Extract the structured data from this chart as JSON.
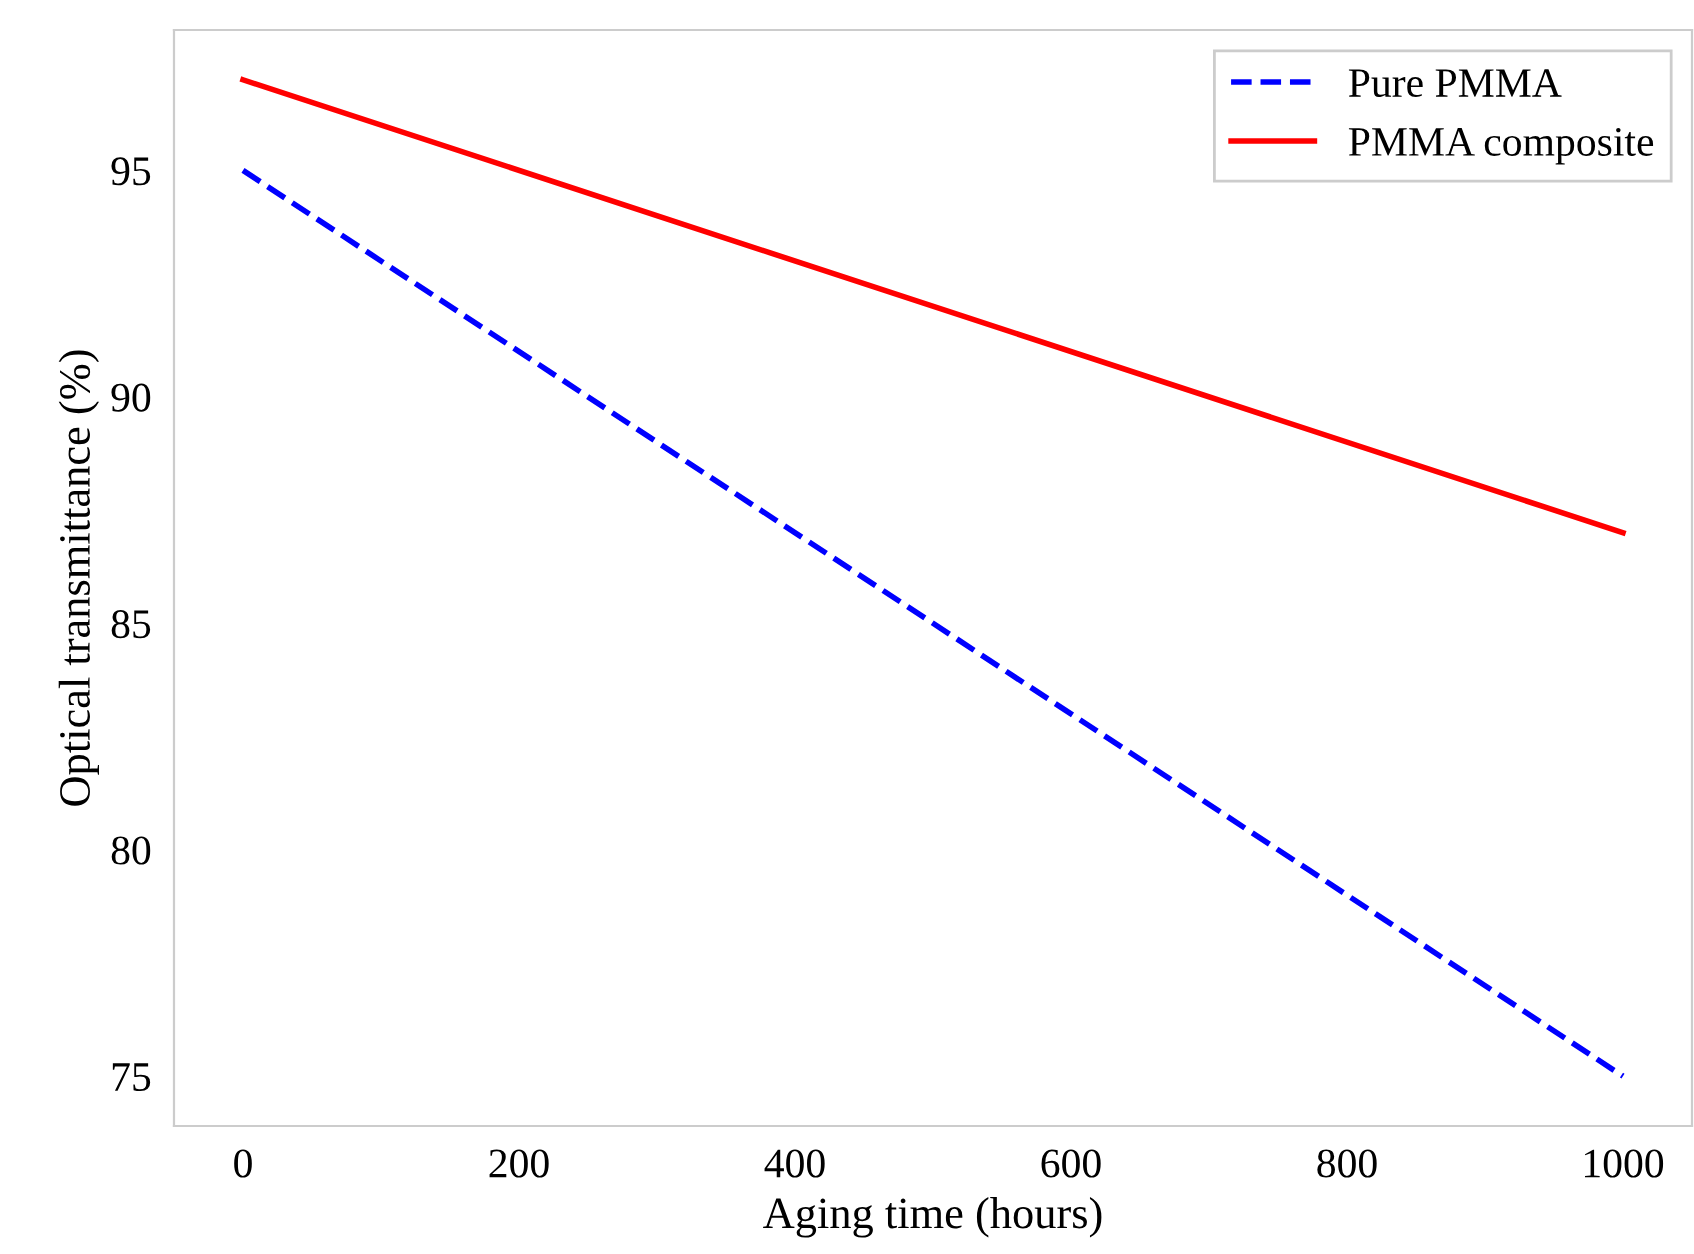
{
  "chart_data": {
    "type": "line",
    "xlabel": "Aging time (hours)",
    "ylabel": "Optical transmittance (%)",
    "x": [
      0,
      1000
    ],
    "series": [
      {
        "name": "Pure PMMA",
        "color": "#0000ff",
        "values": [
          95.0,
          75.0
        ],
        "line_style": "dashed"
      },
      {
        "name": "PMMA composite",
        "color": "#ff0000",
        "values": [
          97.0,
          87.0
        ],
        "line_style": "solid"
      }
    ],
    "xlim": [
      -50,
      1050
    ],
    "ylim": [
      73.9,
      98.1
    ],
    "xticks": [
      0,
      200,
      400,
      600,
      800,
      1000
    ],
    "yticks": [
      75,
      80,
      85,
      90,
      95
    ],
    "grid": false,
    "legend": "top right",
    "marker": "none"
  }
}
